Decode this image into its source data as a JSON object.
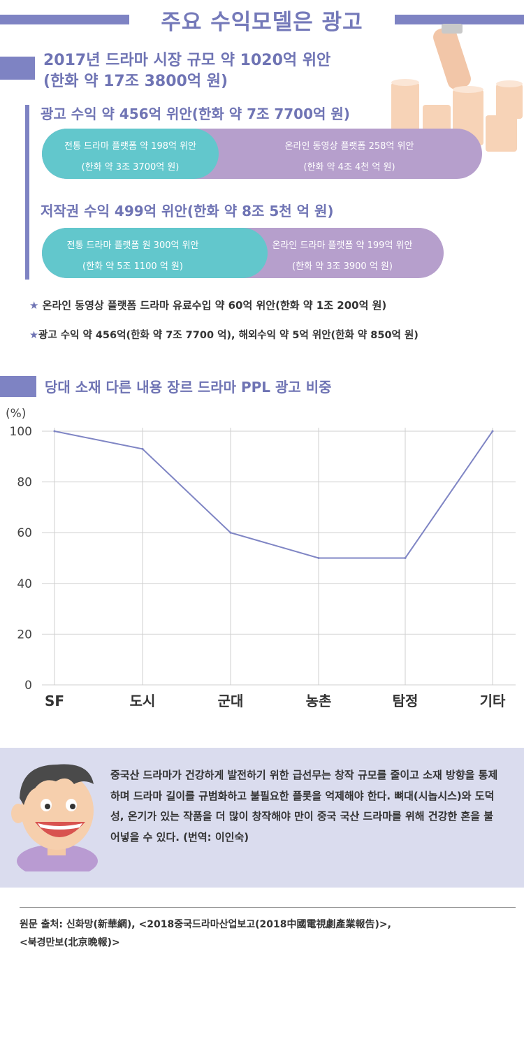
{
  "header": {
    "title": "주요 수익모델은 광고",
    "market_line1": "2017년 드라마 시장 규모 약 1020억 위안",
    "market_line2": "(한화 약 17조 3800억 원)"
  },
  "ad_revenue": {
    "heading": "광고 수익 약 456억 위안(한화 약 7조 7700억 원)",
    "traditional_l1": "전통 드라마 플랫폼 약 198억 위안",
    "traditional_l2": "(한화 약 3조 3700억 원)",
    "online_l1": "온라인 동영상 플랫폼 258억 위안",
    "online_l2": "(한화 약 4조 4천 억 원)"
  },
  "copyright_revenue": {
    "heading": "저작권 수익 499억 위안(한화 약 8조 5천 억 원)",
    "traditional_l1": "전통 드라마 플랫폼 원 300억 위안",
    "traditional_l2": "(한화 약 5조 1100 억 원)",
    "online_l1": "온라인 드라마 플랫폼 약 199억 위안",
    "online_l2": "(한화 약 3조 3900 억 원)"
  },
  "notes": [
    {
      "star": "★",
      "text": " 온라인 동영상 플랫폼 드라마 유료수입 약 60억 위안(한화 약 1조 200억 원)"
    },
    {
      "star": "★",
      "text": "광고 수익 약 456억(한화 약 7조 7700 억), 해외수익 약 5억 위안(한화 약 850억 원)"
    }
  ],
  "chart_section": {
    "title": "당대 소재 다른 내용 장르 드라마 PPL 광고 비중"
  },
  "chart_data": {
    "type": "line",
    "ylabel": "(%)",
    "categories": [
      "SF",
      "도시",
      "군대",
      "농촌",
      "탐정",
      "기타"
    ],
    "series": [
      {
        "values": [
          100,
          93,
          60,
          50,
          50,
          100
        ]
      }
    ],
    "ylim": [
      0,
      100
    ],
    "yticks": [
      "0",
      "20",
      "40",
      "60",
      "80",
      "100"
    ],
    "grid": true,
    "line_color": "#7f85c4"
  },
  "quote": {
    "text": "중국산 드라마가 건강하게 발전하기 위한 급선무는 창작 규모를 줄이고 소재 방향을 통제하며 드라마 길이를 규범화하고 불필요한 플롯을 억제해야 한다. 뼈대(시놉시스)와 도덕성, 온기가 있는 작품을 더 많이 창작해야 만이 중국 국산 드라마를 위해 건강한 혼을 불어넣을 수 있다. (번역: 이인숙)"
  },
  "source": {
    "line1": "원문 출처: 신화망(新華網), <2018중국드라마산업보고(2018中國電視劇產業報告)>,",
    "line2": "<북경만보(北京晩報)>"
  },
  "colors": {
    "accent": "#7e83c3",
    "teal": "#62c7cc",
    "lavender": "#b69fcc",
    "quote_bg": "#dadcee"
  }
}
